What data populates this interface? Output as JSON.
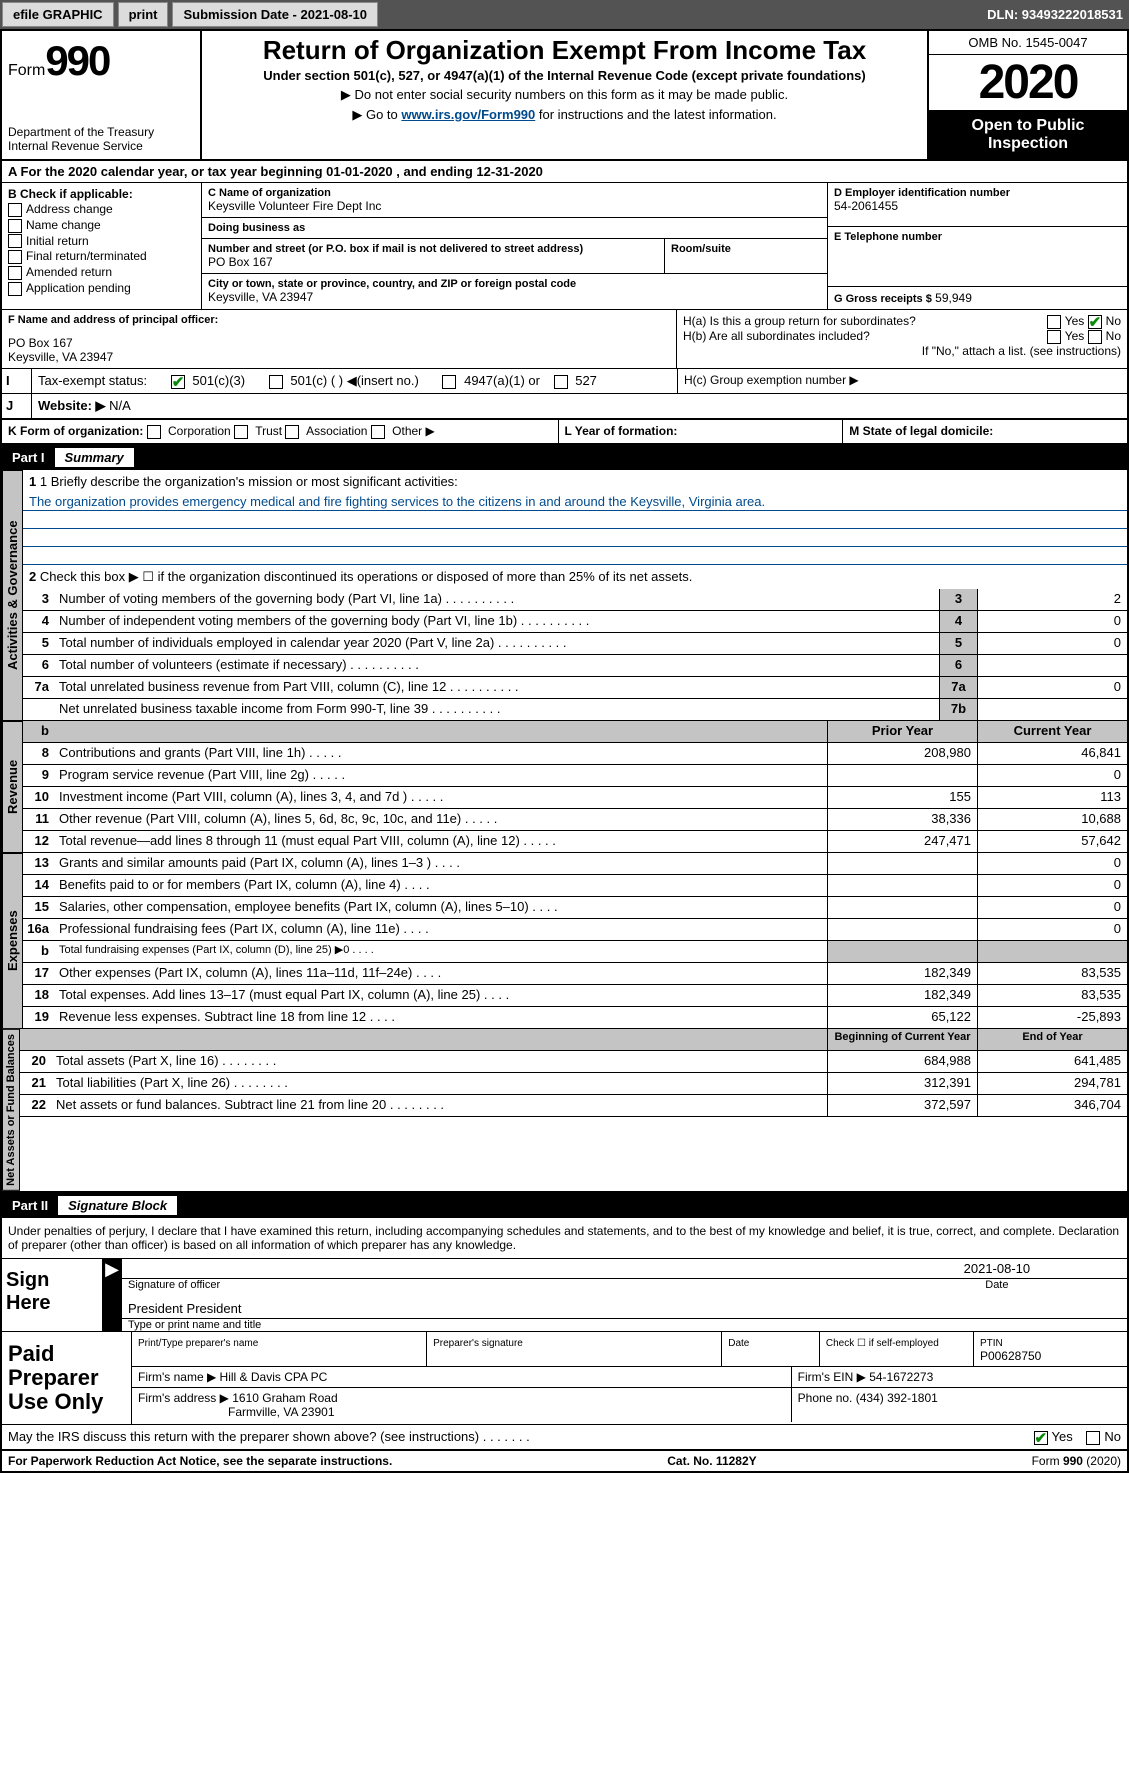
{
  "toolbar": {
    "efile": "efile GRAPHIC",
    "print": "print",
    "submission_label": "Submission Date - 2021-08-10",
    "dln": "DLN: 93493222018531"
  },
  "header": {
    "form_label": "Form",
    "form_num": "990",
    "dept": "Department of the Treasury\nInternal Revenue Service",
    "title": "Return of Organization Exempt From Income Tax",
    "sub": "Under section 501(c), 527, or 4947(a)(1) of the Internal Revenue Code (except private foundations)",
    "note1": "▶ Do not enter social security numbers on this form as it may be made public.",
    "note2_pre": "▶ Go to ",
    "note2_link": "www.irs.gov/Form990",
    "note2_post": " for instructions and the latest information.",
    "omb": "OMB No. 1545-0047",
    "year": "2020",
    "open": "Open to Public Inspection"
  },
  "rowA": "A For the 2020 calendar year, or tax year beginning 01-01-2020   , and ending 12-31-2020",
  "B": {
    "label": "B Check if applicable:",
    "items": [
      "Address change",
      "Name change",
      "Initial return",
      "Final return/terminated",
      "Amended return",
      "Application pending"
    ]
  },
  "C": {
    "name_label": "C Name of organization",
    "name": "Keysville Volunteer Fire Dept Inc",
    "dba_label": "Doing business as",
    "dba": "",
    "street_label": "Number and street (or P.O. box if mail is not delivered to street address)",
    "room_label": "Room/suite",
    "street": "PO Box 167",
    "city_label": "City or town, state or province, country, and ZIP or foreign postal code",
    "city": "Keysville, VA  23947"
  },
  "D": {
    "label": "D Employer identification number",
    "value": "54-2061455"
  },
  "E": {
    "label": "E Telephone number",
    "value": ""
  },
  "G": {
    "label": "G Gross receipts $",
    "value": "59,949"
  },
  "F": {
    "label": "F  Name and address of principal officer:",
    "addr1": "PO Box 167",
    "addr2": "Keysville, VA  23947"
  },
  "H": {
    "a_label": "H(a)  Is this a group return for subordinates?",
    "b_label": "H(b)  Are all subordinates included?",
    "b_note": "If \"No,\" attach a list. (see instructions)",
    "c_label": "H(c)  Group exemption number ▶"
  },
  "I": {
    "label": "Tax-exempt status:",
    "opts": [
      "501(c)(3)",
      "501(c) (  ) ◀(insert no.)",
      "4947(a)(1) or",
      "527"
    ]
  },
  "J": {
    "label": "Website: ▶",
    "value": "N/A"
  },
  "K": {
    "label": "K Form of organization:",
    "opts": [
      "Corporation",
      "Trust",
      "Association",
      "Other ▶"
    ]
  },
  "L": {
    "label": "L Year of formation:"
  },
  "M": {
    "label": "M State of legal domicile:"
  },
  "partI": {
    "num": "Part I",
    "title": "Summary"
  },
  "summary": {
    "q1_label": "1  Briefly describe the organization's mission or most significant activities:",
    "q1_text": "The organization provides emergency medical and fire fighting services to the citizens in and around the Keysville, Virginia area.",
    "q2": "Check this box ▶ ☐  if the organization discontinued its operations or disposed of more than 25% of its net assets.",
    "lines": [
      {
        "n": "3",
        "t": "Number of voting members of the governing body (Part VI, line 1a)",
        "box": "3",
        "v": "2"
      },
      {
        "n": "4",
        "t": "Number of independent voting members of the governing body (Part VI, line 1b)",
        "box": "4",
        "v": "0"
      },
      {
        "n": "5",
        "t": "Total number of individuals employed in calendar year 2020 (Part V, line 2a)",
        "box": "5",
        "v": "0"
      },
      {
        "n": "6",
        "t": "Total number of volunteers (estimate if necessary)",
        "box": "6",
        "v": ""
      },
      {
        "n": "7a",
        "t": "Total unrelated business revenue from Part VIII, column (C), line 12",
        "box": "7a",
        "v": "0"
      },
      {
        "n": "",
        "t": "Net unrelated business taxable income from Form 990-T, line 39",
        "box": "7b",
        "v": ""
      }
    ],
    "col_prior": "Prior Year",
    "col_current": "Current Year",
    "revenue": [
      {
        "n": "8",
        "t": "Contributions and grants (Part VIII, line 1h)",
        "p": "208,980",
        "c": "46,841"
      },
      {
        "n": "9",
        "t": "Program service revenue (Part VIII, line 2g)",
        "p": "",
        "c": "0"
      },
      {
        "n": "10",
        "t": "Investment income (Part VIII, column (A), lines 3, 4, and 7d )",
        "p": "155",
        "c": "113"
      },
      {
        "n": "11",
        "t": "Other revenue (Part VIII, column (A), lines 5, 6d, 8c, 9c, 10c, and 11e)",
        "p": "38,336",
        "c": "10,688"
      },
      {
        "n": "12",
        "t": "Total revenue—add lines 8 through 11 (must equal Part VIII, column (A), line 12)",
        "p": "247,471",
        "c": "57,642"
      }
    ],
    "expenses": [
      {
        "n": "13",
        "t": "Grants and similar amounts paid (Part IX, column (A), lines 1–3 )",
        "p": "",
        "c": "0"
      },
      {
        "n": "14",
        "t": "Benefits paid to or for members (Part IX, column (A), line 4)",
        "p": "",
        "c": "0"
      },
      {
        "n": "15",
        "t": "Salaries, other compensation, employee benefits (Part IX, column (A), lines 5–10)",
        "p": "",
        "c": "0"
      },
      {
        "n": "16a",
        "t": "Professional fundraising fees (Part IX, column (A), line 11e)",
        "p": "",
        "c": "0"
      },
      {
        "n": "b",
        "t": "Total fundraising expenses (Part IX, column (D), line 25) ▶0",
        "p": "shade",
        "c": "shade"
      },
      {
        "n": "17",
        "t": "Other expenses (Part IX, column (A), lines 11a–11d, 11f–24e)",
        "p": "182,349",
        "c": "83,535"
      },
      {
        "n": "18",
        "t": "Total expenses. Add lines 13–17 (must equal Part IX, column (A), line 25)",
        "p": "182,349",
        "c": "83,535"
      },
      {
        "n": "19",
        "t": "Revenue less expenses. Subtract line 18 from line 12",
        "p": "65,122",
        "c": "-25,893"
      }
    ],
    "col_begin": "Beginning of Current Year",
    "col_end": "End of Year",
    "net": [
      {
        "n": "20",
        "t": "Total assets (Part X, line 16)",
        "p": "684,988",
        "c": "641,485"
      },
      {
        "n": "21",
        "t": "Total liabilities (Part X, line 26)",
        "p": "312,391",
        "c": "294,781"
      },
      {
        "n": "22",
        "t": "Net assets or fund balances. Subtract line 21 from line 20",
        "p": "372,597",
        "c": "346,704"
      }
    ]
  },
  "labels": {
    "activities": "Activities & Governance",
    "revenue": "Revenue",
    "expenses": "Expenses",
    "net": "Net Assets or Fund Balances"
  },
  "partII": {
    "num": "Part II",
    "title": "Signature Block"
  },
  "sig": {
    "perjury": "Under penalties of perjury, I declare that I have examined this return, including accompanying schedules and statements, and to the best of my knowledge and belief, it is true, correct, and complete. Declaration of preparer (other than officer) is based on all information of which preparer has any knowledge.",
    "sign_here": "Sign Here",
    "date": "2021-08-10",
    "sig_officer": "Signature of officer",
    "date_label": "Date",
    "name_title": "President President",
    "type_name": "Type or print name and title"
  },
  "paid": {
    "title": "Paid Preparer Use Only",
    "h_name": "Print/Type preparer's name",
    "h_sig": "Preparer's signature",
    "h_date": "Date",
    "h_check": "Check ☐ if self-employed",
    "h_ptin": "PTIN",
    "ptin": "P00628750",
    "firm_name_label": "Firm's name    ▶",
    "firm_name": "Hill & Davis CPA PC",
    "firm_ein_label": "Firm's EIN ▶",
    "firm_ein": "54-1672273",
    "firm_addr_label": "Firm's address ▶",
    "firm_addr1": "1610 Graham Road",
    "firm_addr2": "Farmville, VA  23901",
    "phone_label": "Phone no.",
    "phone": "(434) 392-1801"
  },
  "discuss": "May the IRS discuss this return with the preparer shown above? (see instructions)",
  "footer": {
    "left": "For Paperwork Reduction Act Notice, see the separate instructions.",
    "mid": "Cat. No. 11282Y",
    "right": "Form 990 (2020)"
  }
}
